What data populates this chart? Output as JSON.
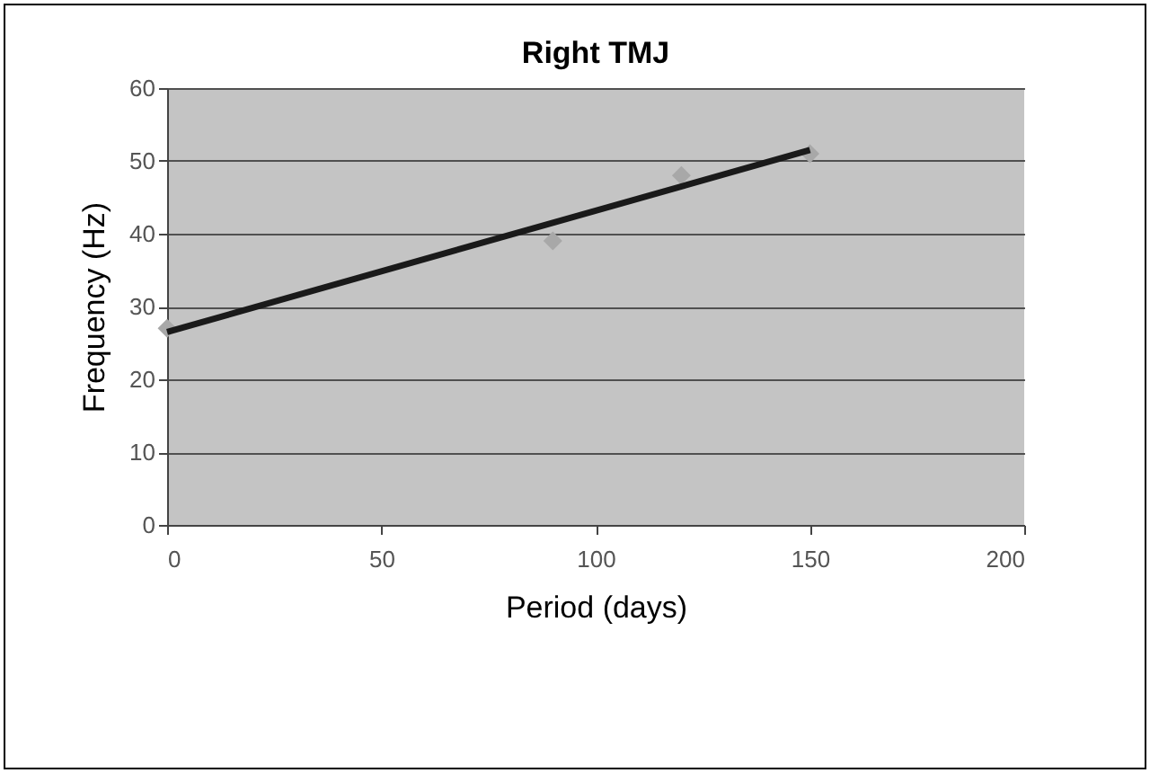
{
  "chart_data": {
    "type": "scatter",
    "title": "Right TMJ",
    "xlabel": "Period  (days)",
    "ylabel": "Frequency (Hz)",
    "xlim": [
      0,
      200
    ],
    "xticks": [
      0,
      50,
      100,
      150,
      200
    ],
    "ylim": [
      0,
      60
    ],
    "yticks": [
      0,
      10,
      20,
      30,
      40,
      50,
      60
    ],
    "grid": "y",
    "series": [
      {
        "color": "#a8a8a8",
        "marker": "diamond",
        "x": [
          0,
          90,
          120,
          150
        ],
        "values": [
          27,
          39,
          48,
          51
        ]
      },
      {
        "type": "line",
        "color": "#1a1a1a",
        "marker": "none",
        "x": [
          0,
          150
        ],
        "values": [
          26.5,
          51.5
        ]
      }
    ]
  }
}
